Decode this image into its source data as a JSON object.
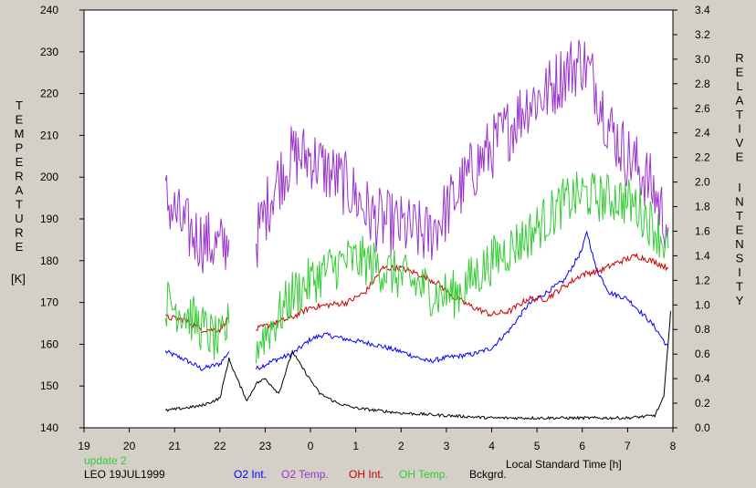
{
  "chart_data": {
    "type": "line",
    "left_axis_label": "TEMPERATURE",
    "left_axis_unit": "[K]",
    "right_axis_label": [
      "RELATIVE",
      "INTENSITY"
    ],
    "xlabel": "Local Standard Time [h]",
    "status": "update 2",
    "station_date": "LEO 19JUL1999",
    "x_ticks": [
      "19",
      "20",
      "21",
      "22",
      "23",
      "0",
      "1",
      "2",
      "3",
      "4",
      "5",
      "6",
      "7",
      "8"
    ],
    "left_ticks": [
      "240",
      "230",
      "220",
      "210",
      "200",
      "190",
      "180",
      "170",
      "160",
      "150",
      "140"
    ],
    "right_ticks": [
      "3.4",
      "3.2",
      "3.0",
      "2.8",
      "2.6",
      "2.4",
      "2.2",
      "2.0",
      "1.8",
      "1.6",
      "1.4",
      "1.2",
      "1.0",
      "0.8",
      "0.6",
      "0.4",
      "0.2",
      "0.0"
    ],
    "xlim": [
      19,
      32
    ],
    "ylim_left": [
      140,
      240
    ],
    "ylim_right": [
      0,
      3.4
    ],
    "grid": false,
    "legend_placement": "bottom",
    "series": [
      {
        "name": "O2 Int.",
        "color": "#0000ff",
        "axis": "right",
        "noise": 0.02,
        "segments": [
          [
            [
              20.8,
              0.62
            ],
            [
              21.2,
              0.56
            ],
            [
              21.6,
              0.48
            ],
            [
              22.0,
              0.52
            ],
            [
              22.2,
              0.62
            ]
          ],
          [
            [
              22.8,
              0.48
            ],
            [
              23.2,
              0.55
            ],
            [
              23.6,
              0.6
            ],
            [
              24.0,
              0.72
            ],
            [
              24.3,
              0.76
            ],
            [
              24.8,
              0.72
            ],
            [
              25.4,
              0.68
            ],
            [
              26.0,
              0.62
            ],
            [
              26.6,
              0.54
            ],
            [
              27.0,
              0.57
            ],
            [
              27.6,
              0.6
            ],
            [
              28.0,
              0.65
            ],
            [
              28.4,
              0.8
            ],
            [
              28.8,
              1.0
            ],
            [
              29.2,
              1.1
            ],
            [
              29.6,
              1.2
            ],
            [
              30.0,
              1.45
            ],
            [
              30.1,
              1.6
            ],
            [
              30.3,
              1.3
            ],
            [
              30.6,
              1.1
            ],
            [
              31.0,
              1.05
            ],
            [
              31.4,
              0.9
            ],
            [
              31.6,
              0.82
            ],
            [
              31.9,
              0.65
            ]
          ]
        ]
      },
      {
        "name": "O2 Temp.",
        "color": "#9933cc",
        "axis": "left",
        "noise": 8,
        "segments": [
          [
            [
              20.8,
              195
            ],
            [
              21.2,
              188
            ],
            [
              21.6,
              185
            ],
            [
              22.0,
              183
            ],
            [
              22.2,
              185
            ]
          ],
          [
            [
              22.8,
              185
            ],
            [
              23.2,
              198
            ],
            [
              23.6,
              205
            ],
            [
              24.0,
              205
            ],
            [
              24.3,
              202
            ],
            [
              24.8,
              198
            ],
            [
              25.4,
              190
            ],
            [
              26.0,
              188
            ],
            [
              26.6,
              186
            ],
            [
              27.0,
              192
            ],
            [
              27.6,
              202
            ],
            [
              28.0,
              207
            ],
            [
              28.4,
              212
            ],
            [
              28.8,
              218
            ],
            [
              29.2,
              220
            ],
            [
              29.6,
              225
            ],
            [
              30.0,
              228
            ],
            [
              30.3,
              222
            ],
            [
              30.6,
              212
            ],
            [
              31.0,
              205
            ],
            [
              31.4,
              200
            ],
            [
              31.6,
              196
            ],
            [
              31.9,
              188
            ]
          ]
        ]
      },
      {
        "name": "OH Int.",
        "color": "#cc0000",
        "axis": "right",
        "noise": 0.025,
        "segments": [
          [
            [
              20.8,
              0.9
            ],
            [
              21.2,
              0.88
            ],
            [
              21.6,
              0.8
            ],
            [
              22.0,
              0.8
            ],
            [
              22.2,
              0.9
            ]
          ],
          [
            [
              22.8,
              0.8
            ],
            [
              23.2,
              0.85
            ],
            [
              23.6,
              0.9
            ],
            [
              24.0,
              0.98
            ],
            [
              24.4,
              1.0
            ],
            [
              24.8,
              1.02
            ],
            [
              25.2,
              1.1
            ],
            [
              25.6,
              1.3
            ],
            [
              26.0,
              1.3
            ],
            [
              26.4,
              1.25
            ],
            [
              26.8,
              1.18
            ],
            [
              27.2,
              1.05
            ],
            [
              27.6,
              0.98
            ],
            [
              28.0,
              0.92
            ],
            [
              28.4,
              0.95
            ],
            [
              28.8,
              1.05
            ],
            [
              29.2,
              1.05
            ],
            [
              29.6,
              1.15
            ],
            [
              30.0,
              1.25
            ],
            [
              30.4,
              1.28
            ],
            [
              30.8,
              1.35
            ],
            [
              31.2,
              1.4
            ],
            [
              31.6,
              1.35
            ],
            [
              31.9,
              1.3
            ]
          ]
        ]
      },
      {
        "name": "OH Temp.",
        "color": "#33cc33",
        "axis": "left",
        "noise": 6,
        "segments": [
          [
            [
              20.8,
              170
            ],
            [
              21.2,
              168
            ],
            [
              21.6,
              164
            ],
            [
              22.0,
              160
            ],
            [
              22.2,
              165
            ]
          ],
          [
            [
              22.8,
              160
            ],
            [
              23.2,
              165
            ],
            [
              23.6,
              172
            ],
            [
              24.0,
              175
            ],
            [
              24.4,
              178
            ],
            [
              24.8,
              180
            ],
            [
              25.2,
              180
            ],
            [
              25.6,
              178
            ],
            [
              26.0,
              176
            ],
            [
              26.4,
              174
            ],
            [
              26.8,
              172
            ],
            [
              27.2,
              172
            ],
            [
              27.6,
              176
            ],
            [
              28.0,
              180
            ],
            [
              28.4,
              183
            ],
            [
              28.8,
              186
            ],
            [
              29.2,
              190
            ],
            [
              29.6,
              194
            ],
            [
              30.0,
              196
            ],
            [
              30.4,
              195
            ],
            [
              30.8,
              195
            ],
            [
              31.2,
              193
            ],
            [
              31.6,
              188
            ],
            [
              31.9,
              183
            ]
          ]
        ]
      },
      {
        "name": "Bckgrd.",
        "color": "#000000",
        "axis": "right",
        "noise": 0.012,
        "segments": [
          [
            [
              20.8,
              0.14
            ],
            [
              21.2,
              0.16
            ],
            [
              21.6,
              0.18
            ],
            [
              22.0,
              0.24
            ],
            [
              22.2,
              0.56
            ],
            [
              22.4,
              0.38
            ],
            [
              22.6,
              0.22
            ],
            [
              22.8,
              0.36
            ],
            [
              23.0,
              0.4
            ],
            [
              23.3,
              0.28
            ],
            [
              23.6,
              0.62
            ],
            [
              23.8,
              0.5
            ],
            [
              24.2,
              0.28
            ],
            [
              24.6,
              0.2
            ],
            [
              25.0,
              0.16
            ],
            [
              26.0,
              0.12
            ],
            [
              27.0,
              0.1
            ],
            [
              28.0,
              0.08
            ],
            [
              29.0,
              0.08
            ],
            [
              30.0,
              0.08
            ],
            [
              31.0,
              0.08
            ],
            [
              31.6,
              0.1
            ],
            [
              31.8,
              0.25
            ],
            [
              31.95,
              0.95
            ]
          ]
        ]
      }
    ]
  }
}
